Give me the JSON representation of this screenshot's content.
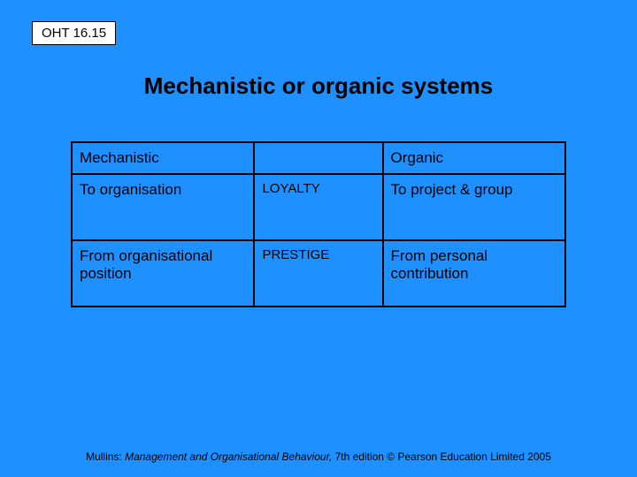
{
  "slide": {
    "oht_label": "OHT 16.15",
    "title": "Mechanistic or organic systems",
    "footer_author": "Mullins: ",
    "footer_book": "Management and Organisational Behaviour, ",
    "footer_rest": "7th edition © Pearson Education Limited 2005"
  },
  "table": {
    "background_color": "#1e90ff",
    "border_color": "#000000",
    "text_color": "#000000",
    "header": {
      "mechanistic": "Mechanistic",
      "middle": "",
      "organic": "Organic"
    },
    "rows": [
      {
        "mechanistic": "To organisation",
        "label": "LOYALTY",
        "organic": "To project & group"
      },
      {
        "mechanistic": "From organisational position",
        "label": "PRESTIGE",
        "organic": "From personal contribution"
      }
    ]
  }
}
